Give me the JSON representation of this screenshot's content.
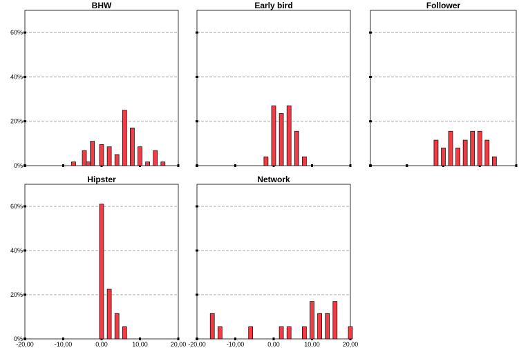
{
  "chart_data": [
    {
      "type": "bar",
      "title": "BHW",
      "colors": {
        "bar": "#f03c46"
      },
      "x": [
        -7.3,
        -4.5,
        -3.5,
        -2.4,
        0.0,
        2.0,
        4.0,
        6.0,
        8.0,
        10.0,
        12.0,
        14.0,
        16.0
      ],
      "values": [
        1.7,
        6.8,
        1.7,
        11.0,
        9.5,
        8.5,
        5.0,
        25.0,
        17.0,
        8.5,
        1.7,
        6.8,
        1.7
      ],
      "xlim": [
        -20,
        20
      ],
      "ylim": [
        0,
        70
      ],
      "xticks": [
        -20,
        -10,
        0,
        10,
        20
      ],
      "yticks": [
        "0%",
        "20%",
        "40%",
        "60%"
      ],
      "ytick_values": [
        0,
        20,
        40,
        60
      ],
      "xtick_labels": [],
      "grid": true
    },
    {
      "type": "bar",
      "title": "Early bird",
      "colors": {
        "bar": "#f03c46"
      },
      "x": [
        -2.0,
        0.0,
        2.0,
        4.0,
        6.0,
        8.0
      ],
      "values": [
        4.0,
        27.0,
        23.5,
        27.0,
        15.5,
        4.0
      ],
      "xlim": [
        -20,
        20
      ],
      "ylim": [
        0,
        70
      ],
      "xticks": [
        -20,
        -10,
        0,
        10,
        20
      ],
      "yticks": [],
      "ytick_values": [
        0,
        20,
        40,
        60
      ],
      "xtick_labels": [],
      "grid": true
    },
    {
      "type": "bar",
      "title": "Follower",
      "colors": {
        "bar": "#f03c46"
      },
      "x": [
        -2.0,
        0.0,
        2.0,
        4.0,
        6.0,
        8.0,
        10.0,
        12.0,
        14.0,
        16.0
      ],
      "values": [
        11.5,
        8.0,
        15.5,
        8.0,
        11.5,
        15.5,
        15.5,
        11.5,
        4.0,
        0
      ],
      "xlim": [
        -20,
        20
      ],
      "ylim": [
        0,
        70
      ],
      "xticks": [
        -20,
        -10,
        0,
        10,
        20
      ],
      "yticks": [],
      "ytick_values": [
        0,
        20,
        40,
        60
      ],
      "xtick_labels": [],
      "grid": true
    },
    {
      "type": "bar",
      "title": "Hipster",
      "colors": {
        "bar": "#f03c46"
      },
      "x": [
        0.0,
        2.0,
        4.0,
        6.0
      ],
      "values": [
        61.0,
        22.5,
        11.5,
        5.5
      ],
      "xlim": [
        -20,
        20
      ],
      "ylim": [
        0,
        70
      ],
      "xticks": [
        -20,
        -10,
        0,
        10,
        20
      ],
      "yticks": [
        "0%",
        "20%",
        "40%",
        "60%"
      ],
      "ytick_values": [
        0,
        20,
        40,
        60
      ],
      "xtick_labels": [
        "-20,00",
        "-10,00",
        "0,00",
        "10,00",
        "20,00"
      ],
      "grid": true
    },
    {
      "type": "bar",
      "title": "Network",
      "colors": {
        "bar": "#f03c46"
      },
      "x": [
        -16.0,
        -14.0,
        -6.0,
        2.0,
        4.0,
        8.0,
        10.0,
        12.0,
        14.0,
        16.0,
        20.0
      ],
      "values": [
        11.5,
        5.5,
        5.5,
        5.5,
        5.5,
        5.5,
        17.0,
        11.5,
        11.5,
        17.0,
        5.5
      ],
      "xlim": [
        -20,
        20
      ],
      "ylim": [
        0,
        70
      ],
      "xticks": [
        -20,
        -10,
        0,
        10,
        20
      ],
      "yticks": [],
      "ytick_values": [
        0,
        20,
        40,
        60
      ],
      "xtick_labels": [
        "-20,00",
        "-10,00",
        "0,00",
        "10,00",
        "20,00"
      ],
      "grid": true
    }
  ]
}
